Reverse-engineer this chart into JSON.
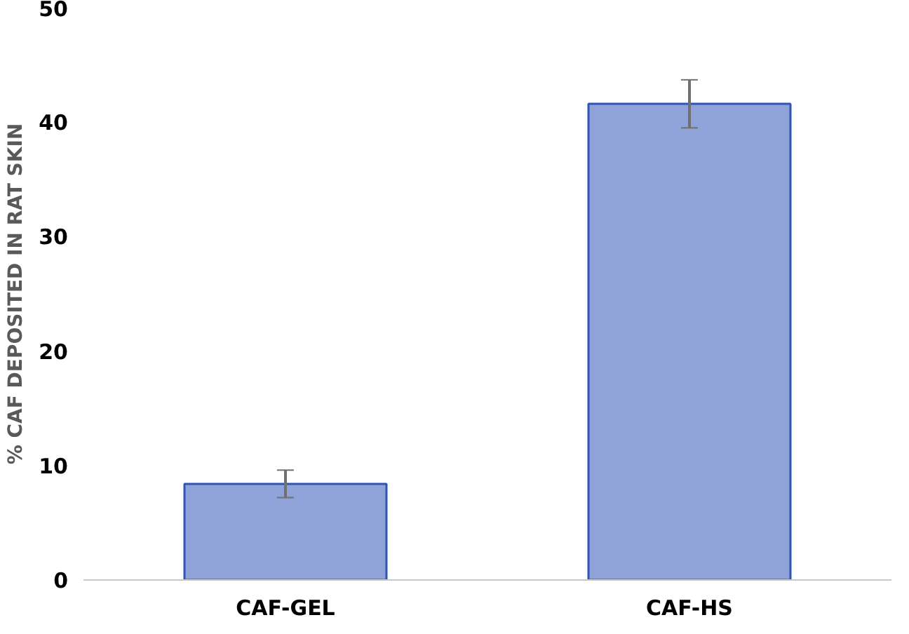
{
  "chart_data": {
    "type": "bar",
    "ylabel": "% CAF DEPOSITED IN RAT SKIN",
    "categories": [
      "CAF-GEL",
      "CAF-HS"
    ],
    "values": [
      8.4,
      41.6
    ],
    "errors": [
      1.2,
      2.1
    ],
    "color": "#8fa3d8",
    "ylim": [
      0,
      50
    ],
    "yticks": [
      0,
      10,
      20,
      30,
      40,
      50
    ],
    "grid": false
  }
}
